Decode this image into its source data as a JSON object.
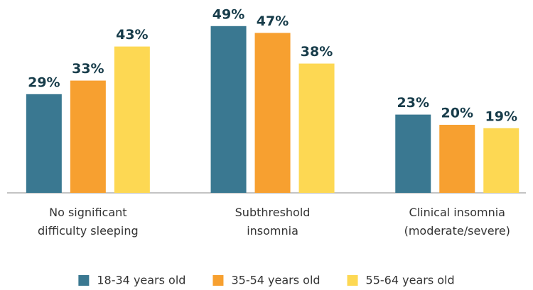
{
  "chart_data": {
    "type": "bar",
    "categories": [
      "No significant difficulty sleeping",
      "Subthreshold insomnia",
      "Clinical insomnia (moderate/severe)"
    ],
    "series": [
      {
        "name": "18-34 years old",
        "color": "#3a7891",
        "values": [
          29,
          49,
          23
        ],
        "value_labels": [
          "29%",
          "49%",
          "23%"
        ]
      },
      {
        "name": "35-54 years old",
        "color": "#f7a030",
        "values": [
          33,
          47,
          20
        ],
        "value_labels": [
          "33%",
          "47%",
          "20%"
        ]
      },
      {
        "name": "55-64 years old",
        "color": "#fdd853",
        "values": [
          43,
          38,
          19
        ],
        "value_labels": [
          "43%",
          "38%",
          "19%"
        ]
      }
    ],
    "ylim": [
      0,
      50
    ],
    "legend": "bottom"
  }
}
